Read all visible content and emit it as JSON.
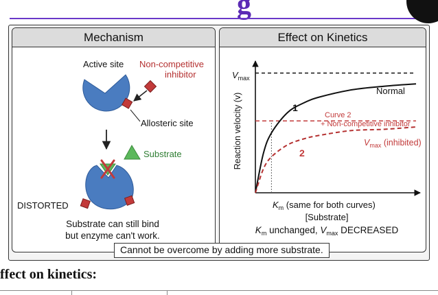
{
  "page": {
    "heading_fragment": "g",
    "section_label": "ffect on kinetics:"
  },
  "mechanism": {
    "title": "Mechanism",
    "active_site_label": "Active site",
    "inhibitor_label_1": "Non-competitive",
    "inhibitor_label_2": "inhibitor",
    "allosteric_label": "Allosteric site",
    "substrate_label": "Substrate",
    "distorted_label": "DISTORTED",
    "caption_1": "Substrate can still bind",
    "caption_2": "but enzyme can't work."
  },
  "kinetics": {
    "title": "Effect on Kinetics",
    "vmax_label": "V",
    "vmax_sub": "max",
    "y_axis_label": "Reaction velocity (v)",
    "curve1_number": "1",
    "curve1_label": "Normal",
    "curve2_title": "Curve 2",
    "curve2_desc": "+ Non-competitive inhibitor",
    "curve2_number": "2",
    "vmax_inhibited_v": "V",
    "vmax_inhibited_sub": "max",
    "vmax_inhibited_rest": " (inhibited)",
    "km_symbol": "K",
    "km_sub": "m",
    "km_rest": " (same for both curves)",
    "x_axis_label": "[Substrate]",
    "summary_km": "K",
    "summary_km_sub": "m",
    "summary_mid": " unchanged, ",
    "summary_v": "V",
    "summary_v_sub": "max",
    "summary_end": " DECREASED"
  },
  "footnote": "Cannot be overcome by adding more substrate.",
  "colors": {
    "enzyme": "#4a7cc0",
    "inhibitor": "#c23a3a",
    "substrate": "#5cb85c",
    "accent": "#5b2bb5"
  },
  "chart_data": {
    "type": "line",
    "xlabel": "[Substrate]",
    "ylabel": "Reaction velocity (v)",
    "series": [
      {
        "name": "Normal",
        "x": [
          0,
          0.5,
          1,
          2,
          3,
          4,
          6,
          8,
          10
        ],
        "y": [
          0,
          0.33,
          0.5,
          0.67,
          0.75,
          0.8,
          0.86,
          0.89,
          0.91
        ]
      },
      {
        "name": "Curve 2",
        "x": [
          0,
          0.5,
          1,
          2,
          3,
          4,
          6,
          8,
          10
        ],
        "y": [
          0,
          0.2,
          0.3,
          0.4,
          0.45,
          0.48,
          0.52,
          0.53,
          0.55
        ]
      }
    ],
    "reference_lines": [
      {
        "axis": "y",
        "value": 1.0,
        "style": "dashed"
      },
      {
        "axis": "y",
        "value": 0.6,
        "style": "dashed"
      },
      {
        "axis": "x",
        "value": 1,
        "style": "dotted"
      }
    ],
    "xlim": [
      0,
      10
    ],
    "ylim": [
      0,
      1.1
    ],
    "grid": false
  }
}
